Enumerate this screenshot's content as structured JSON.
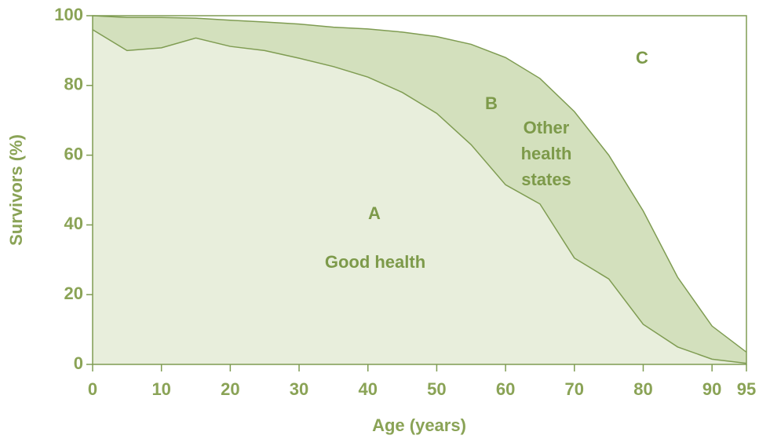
{
  "chart_data": {
    "type": "area",
    "xlabel": "Age (years)",
    "ylabel": "Survivors (%)",
    "x": [
      0,
      5,
      10,
      15,
      20,
      25,
      30,
      35,
      40,
      45,
      50,
      55,
      60,
      65,
      70,
      75,
      80,
      85,
      90,
      95
    ],
    "series": [
      {
        "color": "#d3e0bd",
        "values": [
          100,
          99.5,
          99.5,
          99.3,
          98.7,
          98.2,
          97.6,
          96.7,
          96.2,
          95.3,
          94,
          91.8,
          88,
          82,
          72.5,
          60,
          44,
          25,
          11,
          3.5
        ]
      },
      {
        "color": "#e8eedc",
        "values": [
          96,
          90,
          90.8,
          93.6,
          91.2,
          90,
          87.8,
          85.4,
          82.4,
          78,
          72,
          63,
          51.5,
          46,
          30.5,
          24.5,
          11.5,
          5,
          1.5,
          0.3
        ]
      }
    ],
    "line_color": "#7f9c52",
    "annotations": [
      "A",
      "Good health",
      "B",
      "Other",
      "health",
      "states",
      "C"
    ],
    "xlim": [
      0,
      95
    ],
    "xticks": [
      0,
      10,
      20,
      30,
      40,
      50,
      60,
      70,
      80,
      90,
      95
    ],
    "ylim": [
      0,
      100
    ],
    "yticks": [
      0,
      20,
      40,
      60,
      80,
      100
    ]
  }
}
